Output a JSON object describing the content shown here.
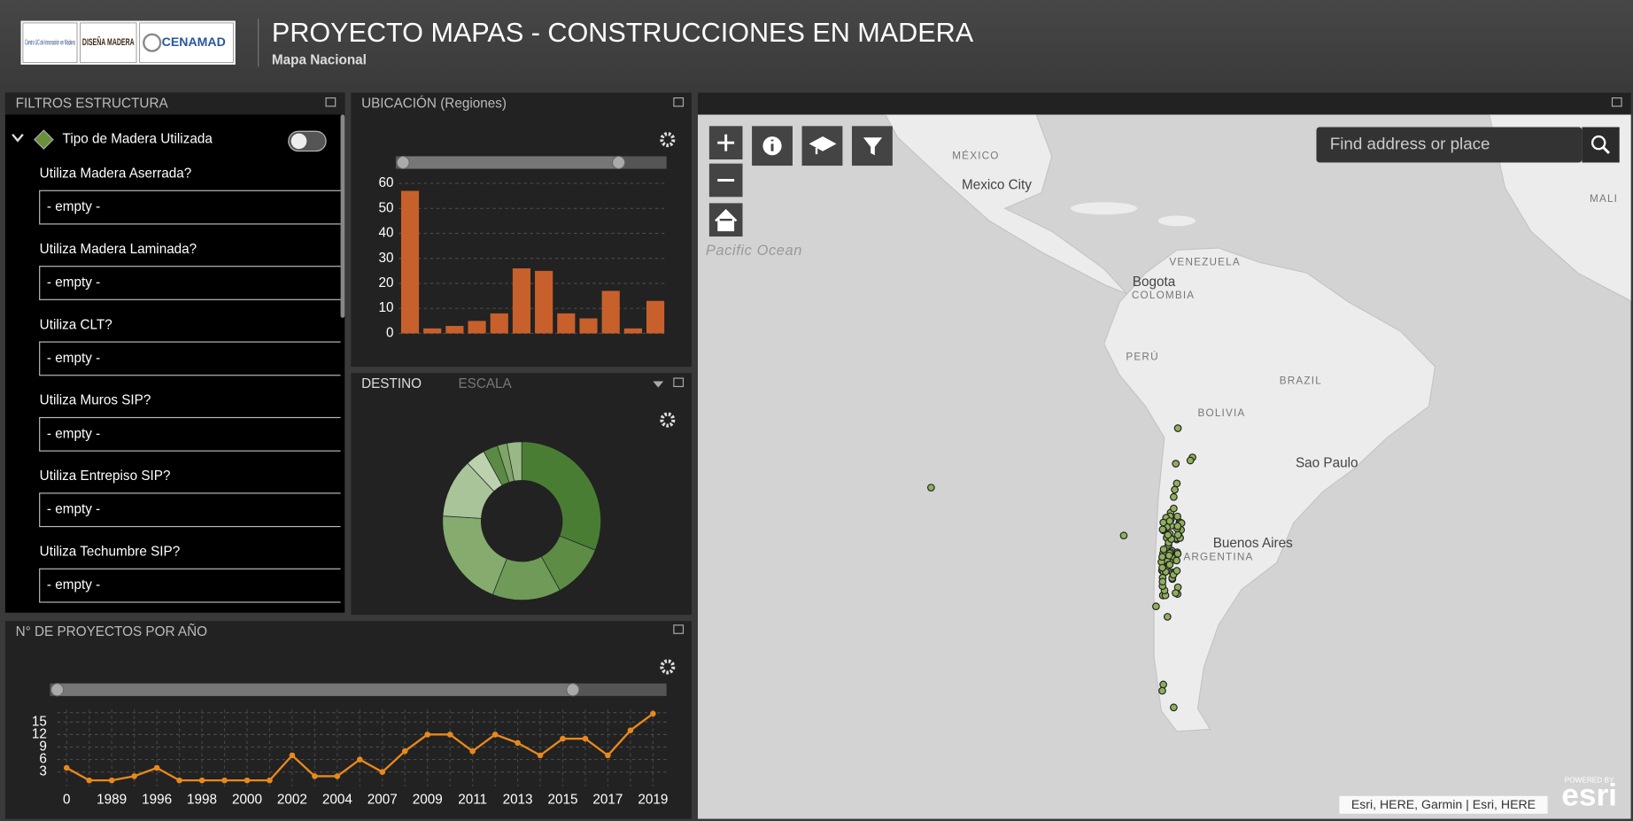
{
  "header": {
    "logos": [
      "Centro UC de Innovación en Madera",
      "DISEÑA MADERA",
      "CENAMAD"
    ],
    "title": "PROYECTO MAPAS - CONSTRUCCIONES EN MADERA",
    "subtitle": "Mapa Nacional"
  },
  "filters": {
    "title": "FILTROS ESTRUCTURA",
    "group": "Tipo de Madera Utilizada",
    "fields": [
      {
        "label": "Utiliza Madera Aserrada?",
        "placeholder": "- empty -"
      },
      {
        "label": "Utiliza Madera Laminada?",
        "placeholder": "- empty -"
      },
      {
        "label": "Utiliza CLT?",
        "placeholder": "- empty -"
      },
      {
        "label": "Utiliza Muros SIP?",
        "placeholder": "- empty -"
      },
      {
        "label": "Utiliza Entrepiso SIP?",
        "placeholder": "- empty -"
      },
      {
        "label": "Utiliza Techumbre SIP?",
        "placeholder": "- empty -"
      }
    ]
  },
  "chart_data": [
    {
      "type": "bar",
      "title": "UBICACIÓN (Regiones)",
      "categories": [
        null,
        null,
        null,
        null,
        null,
        null,
        null,
        null,
        null,
        null,
        null,
        null
      ],
      "values": [
        57,
        2,
        3,
        5,
        8,
        26,
        25,
        8,
        6,
        17,
        2,
        13
      ],
      "color": "#c8602c",
      "ylim": [
        0,
        60
      ],
      "yticks": [
        0,
        10,
        20,
        30,
        40,
        50,
        60
      ],
      "grid": true
    },
    {
      "type": "pie",
      "tabs": [
        "DESTINO",
        "ESCALA"
      ],
      "values": [
        31,
        11,
        14,
        20,
        12,
        4,
        3,
        2,
        3
      ],
      "colors": [
        "#4a7d34",
        "#5d8c45",
        "#6f9a58",
        "#86ab6f",
        "#a9c498",
        "#bcd2ae",
        "#5b8a44",
        "#7ea468",
        "#98b886"
      ]
    },
    {
      "type": "line",
      "title": "N° DE PROYECTOS POR AÑO",
      "categories": [
        "0",
        null,
        "1989",
        null,
        "1996",
        null,
        "1998",
        null,
        "2000",
        null,
        "2002",
        null,
        "2004",
        null,
        "2007",
        null,
        "2009",
        null,
        "2011",
        null,
        "2013",
        null,
        "2015",
        null,
        "2017",
        null,
        "2019"
      ],
      "values": [
        4,
        1,
        1,
        2,
        4,
        1,
        1,
        1,
        1,
        1,
        7,
        2,
        2,
        6,
        3,
        8,
        12,
        12,
        8,
        12,
        10,
        7,
        11,
        11,
        7,
        13,
        17
      ],
      "color": "#e8891c",
      "ylim": [
        0,
        18
      ],
      "yticks": [
        3,
        6,
        9,
        12,
        15
      ],
      "grid": true
    }
  ],
  "map": {
    "labels": [
      "MÉXICO",
      "Mexico City",
      "Pacific Ocean",
      "VENEZUELA",
      "Bogota",
      "COLOMBIA",
      "PERÚ",
      "BRAZIL",
      "BOLIVIA",
      "Sao Paulo",
      "Buenos Aires",
      "ARGENTINA",
      "MALI"
    ],
    "search_placeholder": "Find address or place",
    "attribution": "Esri, HERE, Garmin | Esri, HERE",
    "powered_by": "POWERED BY",
    "brand": "esri"
  }
}
